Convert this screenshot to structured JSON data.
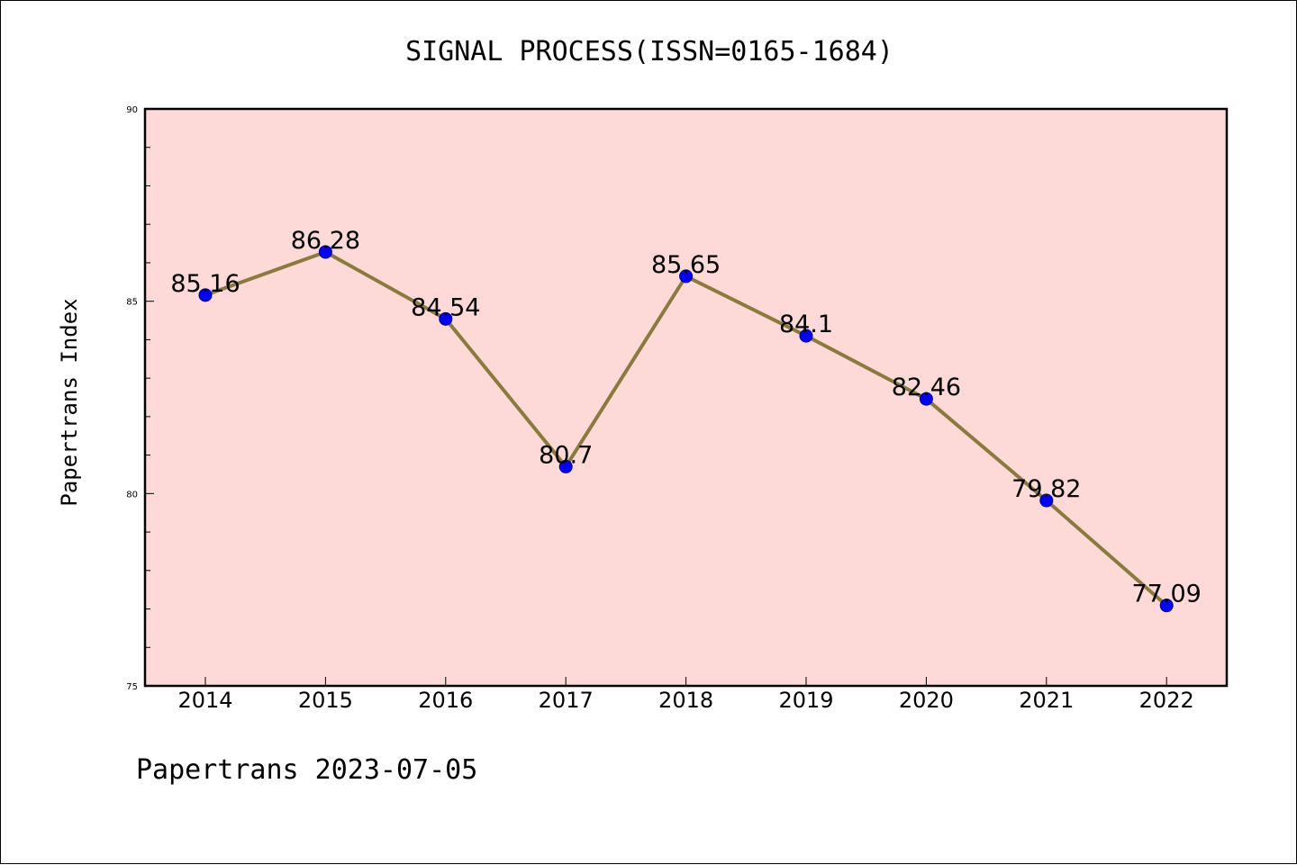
{
  "footer": "Papertrans 2023-07-05",
  "colors": {
    "plot_background": "#FDDAD7",
    "line": "#8B7B3A",
    "marker": "#0000FF",
    "marker_edge": "#00008B"
  },
  "chart_data": {
    "type": "line",
    "title": "SIGNAL PROCESS(ISSN=0165-1684)",
    "xlabel": "",
    "ylabel": "Papertrans Index",
    "categories": [
      "2014",
      "2015",
      "2016",
      "2017",
      "2018",
      "2019",
      "2020",
      "2021",
      "2022"
    ],
    "values": [
      85.16,
      86.28,
      84.54,
      80.7,
      85.65,
      84.1,
      82.46,
      79.82,
      77.09
    ],
    "data_labels": [
      "85.16",
      "86.28",
      "84.54",
      "80.7",
      "85.65",
      "84.1",
      "82.46",
      "79.82",
      "77.09"
    ],
    "ylim": [
      75,
      90
    ],
    "yticks": [
      75,
      80,
      85,
      90
    ],
    "yticks_minor": [
      76,
      77,
      78,
      79,
      81,
      82,
      83,
      84,
      86,
      87,
      88,
      89
    ],
    "grid": false,
    "legend": "none"
  }
}
